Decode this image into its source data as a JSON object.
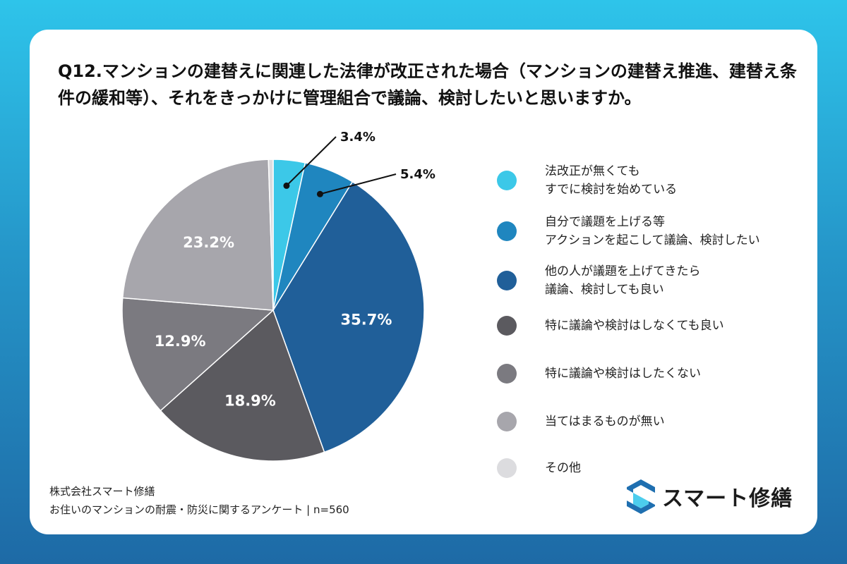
{
  "title": "Q12.マンションの建替えに関連した法律が改正された場合（マンションの建替え推進、建替え条件の緩和等）、それをきっかけに管理組合で議論、検討したいと思いますか。",
  "chart_data": {
    "type": "pie",
    "start_angle_deg": 0,
    "direction": "clockwise",
    "slices": [
      {
        "label": "法改正が無くても\nすでに検討を始めている",
        "value": 3.4,
        "value_label": "3.4%",
        "color": "#3cc8e8"
      },
      {
        "label": "自分で議題を上げる等\nアクションを起こして議論、検討したい",
        "value": 5.4,
        "value_label": "5.4%",
        "color": "#1f86bf"
      },
      {
        "label": "他の人が議題を上げてきたら\n議論、検討しても良い",
        "value": 35.7,
        "value_label": "35.7%",
        "color": "#205f99"
      },
      {
        "label": "特に議論や検討はしなくても良い",
        "value": 18.9,
        "value_label": "18.9%",
        "color": "#5b5a5f"
      },
      {
        "label": "特に議論や検討はしたくない",
        "value": 12.9,
        "value_label": "12.9%",
        "color": "#7b7a80"
      },
      {
        "label": "当てはまるものが無い",
        "value": 23.2,
        "value_label": "23.2%",
        "color": "#a7a6ac"
      },
      {
        "label": "その他",
        "value": 0.5,
        "value_label": "",
        "color": "#dcdcdf"
      }
    ]
  },
  "footer": {
    "company": "株式会社スマート修繕",
    "survey": "お住いのマンションの耐震・防災に関するアンケート | n=560"
  },
  "brand": {
    "name": "スマート修繕",
    "color": "#1f6fb0",
    "accent": "#2ec4ea"
  }
}
